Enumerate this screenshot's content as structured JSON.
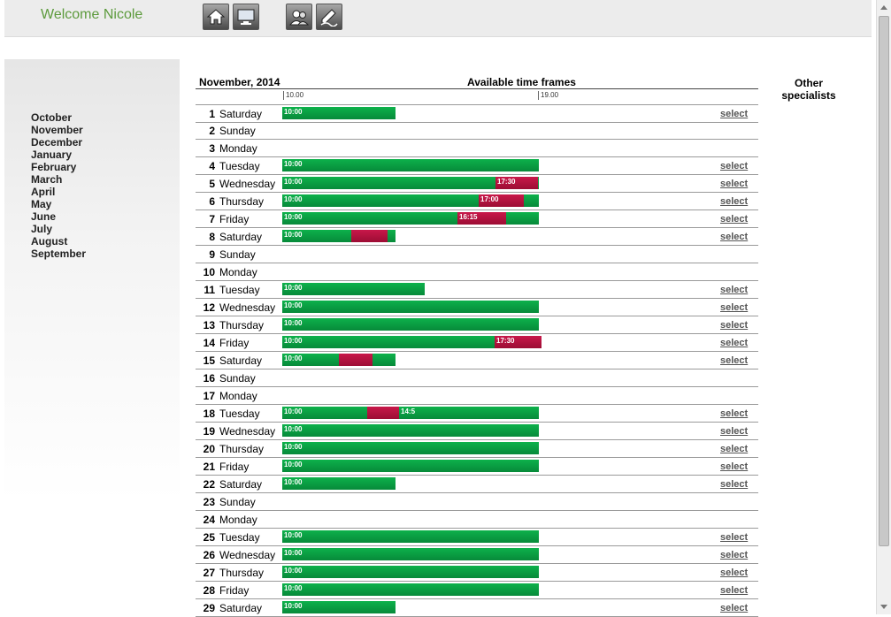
{
  "header": {
    "welcome": "Welcome Nicole",
    "icons": [
      "home-icon",
      "monitor-icon",
      "users-icon",
      "signature-icon"
    ]
  },
  "sidebar": {
    "months": [
      "October",
      "November",
      "December",
      "January",
      "February",
      "March",
      "April",
      "May",
      "June",
      "July",
      "August",
      "September"
    ]
  },
  "calendar": {
    "title": "November, 2014",
    "available_title": "Available time frames",
    "scale": [
      "10.00",
      "19.00"
    ],
    "other_specialists": "Other specialists",
    "select_label": "select",
    "days": [
      {
        "num": "1",
        "name": "Saturday",
        "start": "10:00",
        "end_frac": 0.44,
        "select": true
      },
      {
        "num": "2",
        "name": "Sunday"
      },
      {
        "num": "3",
        "name": "Monday"
      },
      {
        "num": "4",
        "name": "Tuesday",
        "start": "10:00",
        "end_frac": 1.0,
        "select": true
      },
      {
        "num": "5",
        "name": "Wednesday",
        "start": "10:00",
        "end_frac": 1.0,
        "select": true,
        "busy": {
          "from": 0.83,
          "to": 0.996,
          "label": "17:30"
        }
      },
      {
        "num": "6",
        "name": "Thursday",
        "start": "10:00",
        "end_frac": 1.0,
        "select": true,
        "busy": {
          "from": 0.765,
          "to": 0.94,
          "label": "17:00"
        }
      },
      {
        "num": "7",
        "name": "Friday",
        "start": "10:00",
        "end_frac": 1.0,
        "select": true,
        "busy": {
          "from": 0.684,
          "to": 0.873,
          "label": "16:15"
        }
      },
      {
        "num": "8",
        "name": "Saturday",
        "start": "10:00",
        "end_frac": 0.44,
        "select": true,
        "busy": {
          "from": 0.27,
          "to": 0.41,
          "label": ""
        }
      },
      {
        "num": "9",
        "name": "Sunday"
      },
      {
        "num": "10",
        "name": "Monday"
      },
      {
        "num": "11",
        "name": "Tuesday",
        "start": "10:00",
        "end_frac": 0.555,
        "select": true
      },
      {
        "num": "12",
        "name": "Wednesday",
        "start": "10:00",
        "end_frac": 1.0,
        "select": true
      },
      {
        "num": "13",
        "name": "Thursday",
        "start": "10:00",
        "end_frac": 1.0,
        "select": true
      },
      {
        "num": "14",
        "name": "Friday",
        "start": "10:00",
        "end_frac": 1.0,
        "select": true,
        "busy": {
          "from": 0.826,
          "to": 1.01,
          "label": "17:30"
        }
      },
      {
        "num": "15",
        "name": "Saturday",
        "start": "10:00",
        "end_frac": 0.44,
        "select": true,
        "busy": {
          "from": 0.22,
          "to": 0.35,
          "label": ""
        }
      },
      {
        "num": "16",
        "name": "Sunday"
      },
      {
        "num": "17",
        "name": "Monday"
      },
      {
        "num": "18",
        "name": "Tuesday",
        "start": "10:00",
        "end_frac": 1.0,
        "select": true,
        "busy": {
          "from": 0.33,
          "to": 0.455,
          "label": ""
        },
        "tail": "14:5"
      },
      {
        "num": "19",
        "name": "Wednesday",
        "start": "10:00",
        "end_frac": 1.0,
        "select": true
      },
      {
        "num": "20",
        "name": "Thursday",
        "start": "10:00",
        "end_frac": 1.0,
        "select": true
      },
      {
        "num": "21",
        "name": "Friday",
        "start": "10:00",
        "end_frac": 1.0,
        "select": true
      },
      {
        "num": "22",
        "name": "Saturday",
        "start": "10:00",
        "end_frac": 0.44,
        "select": true
      },
      {
        "num": "23",
        "name": "Sunday"
      },
      {
        "num": "24",
        "name": "Monday"
      },
      {
        "num": "25",
        "name": "Tuesday",
        "start": "10:00",
        "end_frac": 1.0,
        "select": true
      },
      {
        "num": "26",
        "name": "Wednesday",
        "start": "10:00",
        "end_frac": 1.0,
        "select": true
      },
      {
        "num": "27",
        "name": "Thursday",
        "start": "10:00",
        "end_frac": 1.0,
        "select": true
      },
      {
        "num": "28",
        "name": "Friday",
        "start": "10:00",
        "end_frac": 1.0,
        "select": true
      },
      {
        "num": "29",
        "name": "Saturday",
        "start": "10:00",
        "end_frac": 0.44,
        "select": true
      }
    ]
  }
}
